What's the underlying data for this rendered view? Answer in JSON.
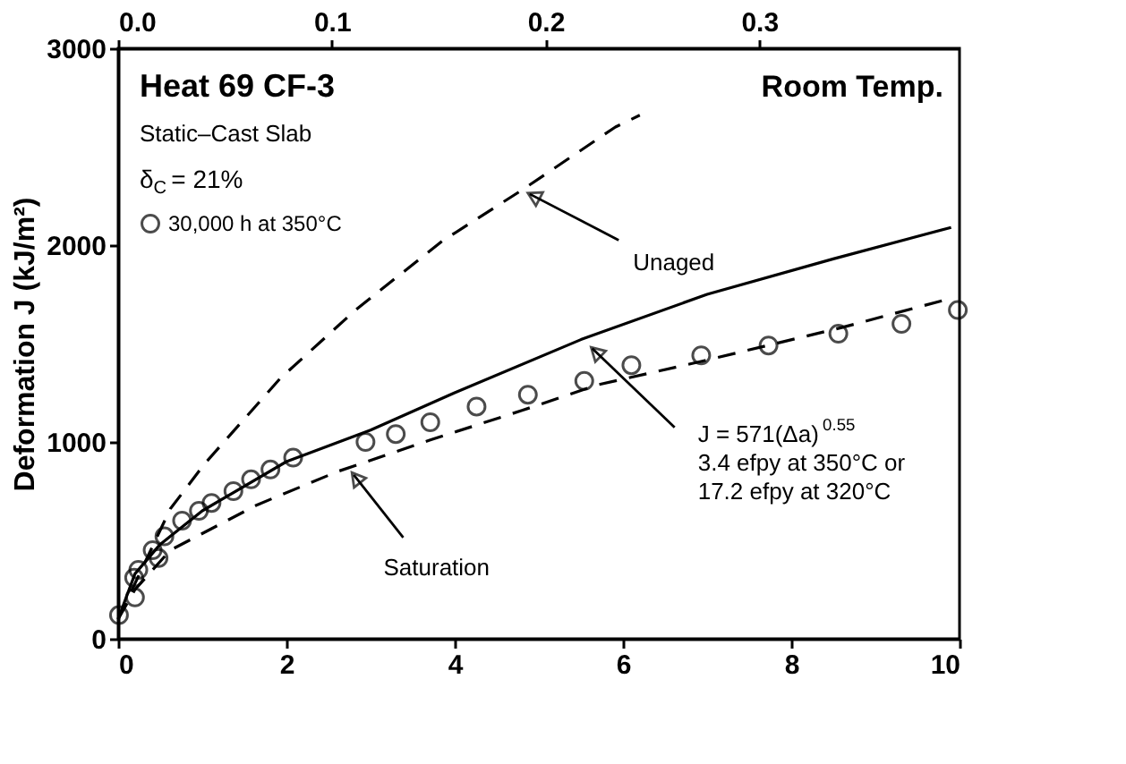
{
  "chart_data": {
    "type": "line",
    "ylabel": "Deformation J (kJ/m²)",
    "xlim": [
      0,
      10
    ],
    "xticks": [
      0,
      2,
      4,
      6,
      8,
      10
    ],
    "ylim": [
      0,
      3000
    ],
    "yticks": [
      0,
      1000,
      2000,
      3000
    ],
    "x2lim": [
      0,
      0.3937
    ],
    "x2ticks": [
      {
        "value": 0,
        "label": "0.0"
      },
      0.1,
      0.2,
      0.3
    ],
    "grid": false,
    "legend": "top left",
    "series": [
      {
        "name": "30,000 h at 350°C",
        "type": "scatter",
        "marker": "circle",
        "color": "#000000",
        "x": [
          0.01,
          0.2,
          0.19,
          0.24,
          0.41,
          0.48,
          0.55,
          0.76,
          0.96,
          1.11,
          1.37,
          1.58,
          1.81,
          2.08,
          2.94,
          3.3,
          3.71,
          4.26,
          4.87,
          5.54,
          6.1,
          6.93,
          7.73,
          8.56,
          9.31,
          9.98
        ],
        "values": [
          120,
          210,
          310,
          350,
          450,
          410,
          520,
          600,
          650,
          690,
          750,
          810,
          860,
          920,
          1000,
          1040,
          1100,
          1180,
          1240,
          1310,
          1390,
          1440,
          1490,
          1550,
          1600,
          1670
        ]
      },
      {
        "line_style": "dashed",
        "color": "#000000",
        "x": [
          0,
          0.62,
          1.03,
          1.92,
          2.82,
          3.85,
          4.8,
          5.91,
          6.2
        ],
        "values": [
          100,
          660,
          890,
          1320,
          1670,
          2020,
          2280,
          2600,
          2660
        ]
      },
      {
        "line_style": "solid",
        "color": "#000000",
        "x": [
          0,
          0.2,
          0.5,
          1,
          2,
          3,
          4,
          5.5,
          7,
          8.5,
          9.9
        ],
        "values": [
          100,
          330,
          480,
          650,
          900,
          1060,
          1250,
          1520,
          1750,
          1930,
          2090
        ]
      },
      {
        "line_style": "dashed",
        "color": "#000000",
        "x": [
          0,
          0.2,
          0.62,
          1.65,
          2.61,
          3.71,
          4.8,
          5.7,
          6.94,
          8.59,
          9.9
        ],
        "values": [
          100,
          250,
          450,
          680,
          850,
          1010,
          1160,
          1290,
          1410,
          1580,
          1730
        ]
      }
    ],
    "annotations": [
      "Heat 69  CF-3",
      "Static–Cast Slab",
      "δ$_{C}$ = 21%",
      "Room Temp.",
      {
        "text": "Unaged",
        "x": 4.8,
        "y": 2280
      },
      {
        "text": "J = 571(Δa)$^{0.55}$\n3.4 efpy at 350°C or\n17.2 efpy at 320°C",
        "x": 5.55,
        "y": 1510
      },
      {
        "text": "Saturation",
        "x": 2.75,
        "y": 860
      }
    ]
  }
}
